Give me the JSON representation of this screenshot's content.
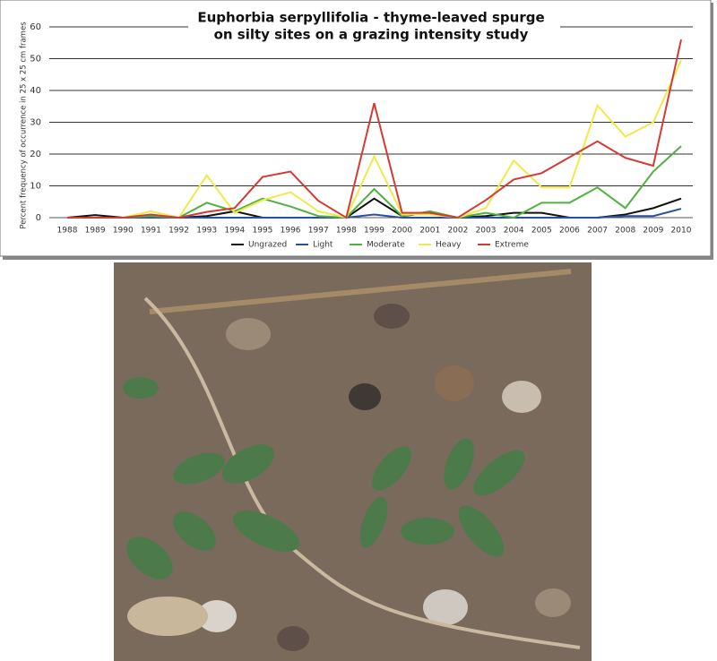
{
  "chart_data": {
    "type": "line",
    "title": [
      "Euphorbia serpyllifolia  -  thyme-leaved spurge",
      "on silty sites on a grazing intensity study"
    ],
    "y_label": "Percent frequency of occurrence in 25 x 25 cm frames",
    "categories": [
      "1988",
      "1989",
      "1990",
      "1991",
      "1992",
      "1993",
      "1994",
      "1995",
      "1996",
      "1997",
      "1998",
      "1999",
      "2000",
      "2001",
      "2002",
      "2003",
      "2004",
      "2005",
      "2006",
      "2007",
      "2008",
      "2009",
      "2010"
    ],
    "ylim": [
      0,
      60
    ],
    "yticks": [
      0,
      10,
      20,
      30,
      40,
      50,
      60
    ],
    "grid": true,
    "legend": "bottom",
    "series": [
      {
        "name": "Ungrazed",
        "color": "#111111",
        "values": [
          0,
          0.8,
          0,
          0.3,
          0,
          0.5,
          2,
          0,
          0,
          0,
          0,
          6,
          0.5,
          1.5,
          0,
          0.5,
          1.5,
          1.5,
          0,
          0,
          1,
          3,
          6
        ]
      },
      {
        "name": "Light",
        "color": "#2b4fa0",
        "values": [
          0,
          0,
          0,
          0,
          0,
          0,
          0,
          0,
          0,
          0,
          0,
          1,
          0,
          0,
          0,
          0,
          0,
          0,
          0,
          0,
          0.5,
          0.5,
          2.8
        ]
      },
      {
        "name": "Moderate",
        "color": "#4db33d",
        "values": [
          0,
          0,
          0,
          0.5,
          0,
          4.7,
          2,
          6,
          3.5,
          0.5,
          0,
          9,
          0.5,
          2,
          0,
          1.5,
          0,
          4.7,
          4.7,
          9.5,
          3,
          14.5,
          22.5
        ]
      },
      {
        "name": "Heavy",
        "color": "#f0e94a",
        "values": [
          0,
          0,
          0,
          2,
          0,
          13.3,
          1.5,
          5.5,
          8,
          2,
          0,
          19.3,
          1,
          1,
          0,
          3,
          18,
          9.5,
          9.5,
          35.3,
          25.5,
          30,
          49.5
        ]
      },
      {
        "name": "Extreme",
        "color": "#d43a33",
        "values": [
          0,
          0,
          0,
          1,
          0,
          1.8,
          3,
          12.8,
          14.5,
          5.3,
          0,
          36,
          1.5,
          1.5,
          0,
          5.5,
          12,
          14,
          19,
          24,
          18.8,
          16.3,
          56
        ]
      }
    ]
  }
}
